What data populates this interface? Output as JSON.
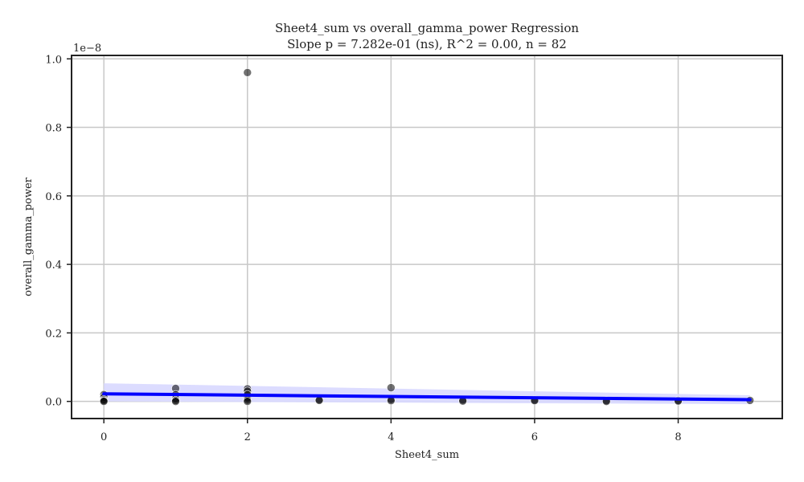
{
  "chart_data": {
    "type": "scatter",
    "title": "Sheet4_sum vs overall_gamma_power Regression",
    "subtitle": "Slope p = 7.282e-01 (ns), R^2 = 0.00, n = 82",
    "xlabel": "Sheet4_sum",
    "ylabel": "overall_gamma_power",
    "y_offset_label": "1e−8",
    "xlim": [
      -0.45,
      9.45
    ],
    "ylim": [
      -0.05,
      1.01
    ],
    "x_ticks": [
      0,
      2,
      4,
      6,
      8
    ],
    "x_tick_labels": [
      "0",
      "2",
      "4",
      "6",
      "8"
    ],
    "y_ticks": [
      0.0,
      0.2,
      0.4,
      0.6,
      0.8,
      1.0
    ],
    "y_tick_labels": [
      "0.0",
      "0.2",
      "0.4",
      "0.6",
      "0.8",
      "1.0"
    ],
    "grid": true,
    "points": [
      {
        "x": 0,
        "y": 0.02
      },
      {
        "x": 0,
        "y": 0.012
      },
      {
        "x": 0,
        "y": 0.005
      },
      {
        "x": 0,
        "y": 0.002
      },
      {
        "x": 0,
        "y": 0.0
      },
      {
        "x": 1,
        "y": 0.038
      },
      {
        "x": 1,
        "y": 0.02
      },
      {
        "x": 1,
        "y": 0.008
      },
      {
        "x": 1,
        "y": 0.003
      },
      {
        "x": 1,
        "y": 0.0
      },
      {
        "x": 2,
        "y": 0.96
      },
      {
        "x": 2,
        "y": 0.037
      },
      {
        "x": 2,
        "y": 0.03
      },
      {
        "x": 2,
        "y": 0.02
      },
      {
        "x": 2,
        "y": 0.01
      },
      {
        "x": 2,
        "y": 0.004
      },
      {
        "x": 2,
        "y": 0.0
      },
      {
        "x": 3,
        "y": 0.005
      },
      {
        "x": 3,
        "y": 0.003
      },
      {
        "x": 4,
        "y": 0.04
      },
      {
        "x": 4,
        "y": 0.006
      },
      {
        "x": 4,
        "y": 0.002
      },
      {
        "x": 5,
        "y": 0.004
      },
      {
        "x": 5,
        "y": 0.001
      },
      {
        "x": 6,
        "y": 0.004
      },
      {
        "x": 6,
        "y": 0.002
      },
      {
        "x": 7,
        "y": 0.002
      },
      {
        "x": 7,
        "y": 0.0
      },
      {
        "x": 8,
        "y": 0.003
      },
      {
        "x": 8,
        "y": 0.001
      },
      {
        "x": 9,
        "y": 0.003
      }
    ],
    "regression": {
      "x0": 0,
      "y0": 0.022,
      "x1": 9,
      "y1": 0.005
    },
    "confidence_band": {
      "upper": [
        [
          0,
          0.053
        ],
        [
          9,
          0.018
        ]
      ],
      "lower": [
        [
          0,
          0.0
        ],
        [
          9,
          -0.008
        ]
      ]
    },
    "colors": {
      "points": "#000000",
      "regression_line": "#0000ff",
      "confidence_band": "#d8d8ff",
      "grid": "#c8c8c8",
      "axes": "#222222"
    }
  }
}
